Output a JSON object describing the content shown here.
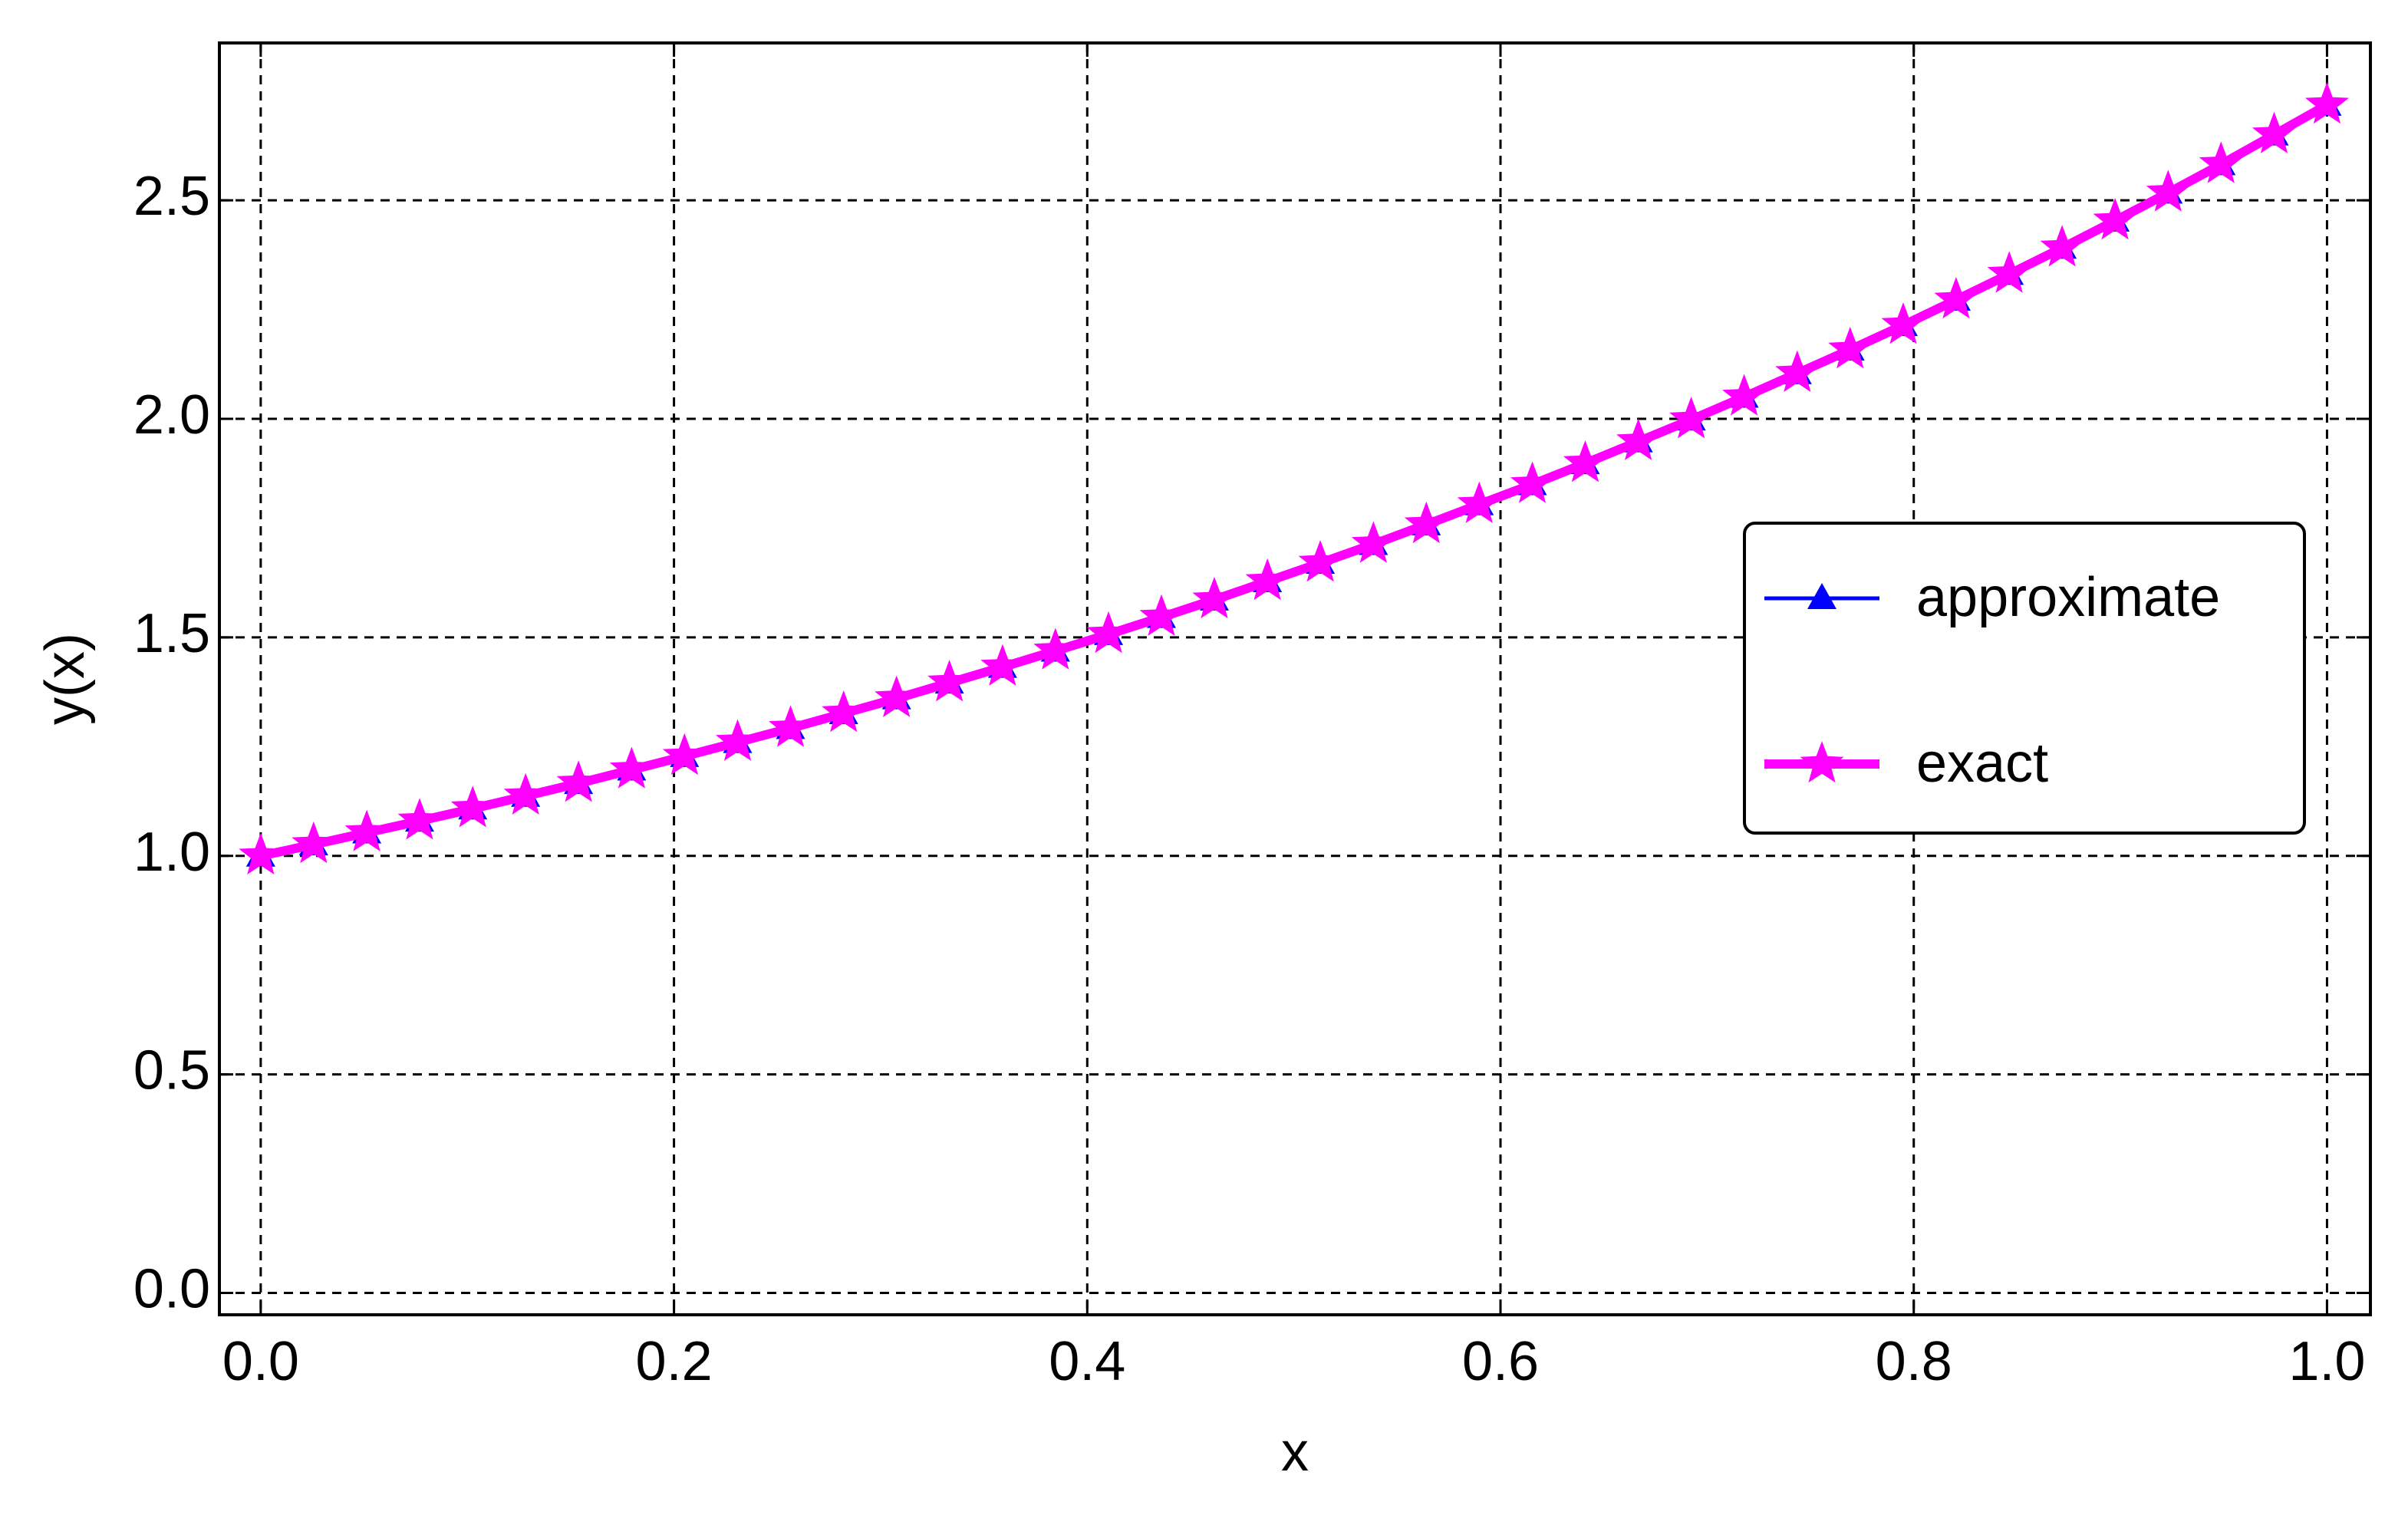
{
  "chart_data": {
    "type": "line",
    "x_label": "x",
    "y_label": "y(x)",
    "x": [
      0,
      0.0256,
      0.0513,
      0.0769,
      0.1026,
      0.1282,
      0.1538,
      0.1795,
      0.2051,
      0.2308,
      0.2564,
      0.2821,
      0.3077,
      0.3333,
      0.359,
      0.3846,
      0.4103,
      0.4359,
      0.4615,
      0.4872,
      0.5128,
      0.5385,
      0.5641,
      0.5897,
      0.6154,
      0.641,
      0.6667,
      0.6923,
      0.7179,
      0.7436,
      0.7692,
      0.7949,
      0.8205,
      0.8462,
      0.8718,
      0.8974,
      0.9231,
      0.9487,
      0.9744,
      1
    ],
    "series": [
      {
        "name": "approximate",
        "color": "#0000ff",
        "marker": "triangle",
        "values": [
          1,
          1.026,
          1.053,
          1.08,
          1.108,
          1.137,
          1.166,
          1.197,
          1.228,
          1.26,
          1.292,
          1.326,
          1.36,
          1.396,
          1.432,
          1.469,
          1.507,
          1.546,
          1.586,
          1.628,
          1.67,
          1.713,
          1.758,
          1.804,
          1.85,
          1.898,
          1.948,
          1.998,
          2.05,
          2.104,
          2.158,
          2.214,
          2.272,
          2.331,
          2.391,
          2.453,
          2.517,
          2.582,
          2.65,
          2.718
        ]
      },
      {
        "name": "exact",
        "color": "#ff00ff",
        "marker": "star",
        "values": [
          1,
          1.026,
          1.053,
          1.08,
          1.108,
          1.137,
          1.166,
          1.197,
          1.228,
          1.26,
          1.292,
          1.326,
          1.36,
          1.396,
          1.432,
          1.469,
          1.507,
          1.546,
          1.586,
          1.628,
          1.67,
          1.713,
          1.758,
          1.804,
          1.85,
          1.898,
          1.948,
          1.998,
          2.05,
          2.104,
          2.158,
          2.214,
          2.272,
          2.331,
          2.391,
          2.453,
          2.517,
          2.582,
          2.65,
          2.718
        ]
      }
    ],
    "xlim": [
      -0.02,
      1.021
    ],
    "ylim": [
      -0.05,
      2.86
    ],
    "xticks": [
      {
        "value": 0,
        "label": "0.0"
      },
      0.2,
      0.4,
      0.6,
      0.8,
      {
        "value": 1,
        "label": "1.0"
      }
    ],
    "yticks": [
      {
        "value": 0,
        "label": "0.0"
      },
      0.5,
      {
        "value": 1,
        "label": "1.0"
      },
      1.5,
      {
        "value": 2,
        "label": "2.0"
      },
      2.5
    ],
    "grid": true,
    "legend": "right"
  }
}
